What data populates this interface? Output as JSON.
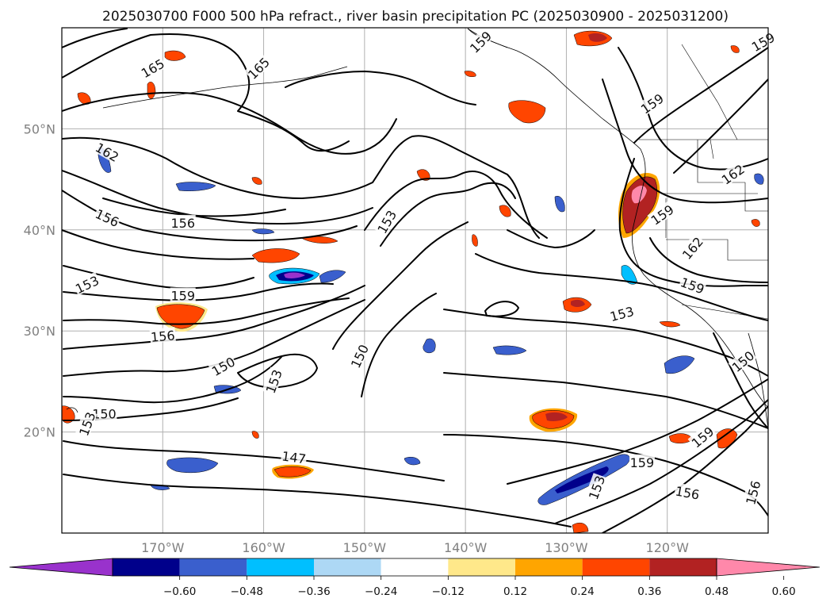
{
  "title": "2025030700 F000 500 hPa refract., river basin precipitation PC (2025030900 - 2025031200)",
  "map": {
    "lon_min": -180,
    "lon_max": -110,
    "lat_min": 10,
    "lat_max": 60,
    "lat_ticks": [
      {
        "value": 20,
        "label": "20°N"
      },
      {
        "value": 30,
        "label": "30°N"
      },
      {
        "value": 40,
        "label": "40°N"
      },
      {
        "value": 50,
        "label": "50°N"
      }
    ],
    "lon_ticks": [
      {
        "value": -170,
        "label": "170°W"
      },
      {
        "value": -160,
        "label": "160°W"
      },
      {
        "value": -150,
        "label": "150°W"
      },
      {
        "value": -140,
        "label": "140°W"
      },
      {
        "value": -130,
        "label": "130°W"
      },
      {
        "value": -120,
        "label": "120°W"
      }
    ]
  },
  "colorbar": {
    "colors": [
      "#9932cc",
      "#00008b",
      "#3a5fcd",
      "#00bfff",
      "#add8f5",
      "#ffffff",
      "#ffe88a",
      "#ffa500",
      "#ff4500",
      "#b22222",
      "#ff88aa"
    ],
    "ticks": [
      "−0.60",
      "−0.48",
      "−0.36",
      "−0.24",
      "−0.12",
      "0.12",
      "0.24",
      "0.36",
      "0.48",
      "0.60"
    ]
  },
  "contour_labels": [
    {
      "text": "165",
      "lon": -171.0,
      "lat": 56.0,
      "rot": -30
    },
    {
      "text": "165",
      "lon": -160.5,
      "lat": 56.0,
      "rot": -45
    },
    {
      "text": "162",
      "lon": -175.5,
      "lat": 47.7,
      "rot": 30
    },
    {
      "text": "156",
      "lon": -175.5,
      "lat": 41.2,
      "rot": 25
    },
    {
      "text": "156",
      "lon": -168.0,
      "lat": 40.7,
      "rot": 0
    },
    {
      "text": "153",
      "lon": -177.5,
      "lat": 34.6,
      "rot": -25
    },
    {
      "text": "159",
      "lon": -168.0,
      "lat": 33.5,
      "rot": 0
    },
    {
      "text": "156",
      "lon": -170.0,
      "lat": 29.5,
      "rot": -5
    },
    {
      "text": "150",
      "lon": -164.0,
      "lat": 26.5,
      "rot": -30
    },
    {
      "text": "153",
      "lon": -159.0,
      "lat": 25.0,
      "rot": -70
    },
    {
      "text": "150",
      "lon": -150.5,
      "lat": 27.5,
      "rot": -65
    },
    {
      "text": "150",
      "lon": -175.8,
      "lat": 21.8,
      "rot": 0
    },
    {
      "text": "153",
      "lon": -177.5,
      "lat": 20.8,
      "rot": -70
    },
    {
      "text": "147",
      "lon": -157.0,
      "lat": 17.5,
      "rot": 8
    },
    {
      "text": "153",
      "lon": -147.8,
      "lat": 40.8,
      "rot": -60
    },
    {
      "text": "159",
      "lon": -121.5,
      "lat": 52.5,
      "rot": -35
    },
    {
      "text": "162",
      "lon": -113.5,
      "lat": 45.5,
      "rot": -35
    },
    {
      "text": "159",
      "lon": -120.5,
      "lat": 41.5,
      "rot": -35
    },
    {
      "text": "162",
      "lon": -117.5,
      "lat": 38.2,
      "rot": -50
    },
    {
      "text": "159",
      "lon": -117.5,
      "lat": 34.5,
      "rot": 20
    },
    {
      "text": "153",
      "lon": -124.5,
      "lat": 31.7,
      "rot": -15
    },
    {
      "text": "150",
      "lon": -112.5,
      "lat": 27.0,
      "rot": -40
    },
    {
      "text": "159",
      "lon": -116.5,
      "lat": 19.5,
      "rot": -40
    },
    {
      "text": "159",
      "lon": -122.5,
      "lat": 17.0,
      "rot": 0
    },
    {
      "text": "153",
      "lon": -127.0,
      "lat": 14.5,
      "rot": -70
    },
    {
      "text": "156",
      "lon": -118.0,
      "lat": 14.0,
      "rot": 10
    },
    {
      "text": "156",
      "lon": -111.5,
      "lat": 14.0,
      "rot": -75
    },
    {
      "text": "159",
      "lon": -110.5,
      "lat": 58.6,
      "rot": -30
    },
    {
      "text": "159",
      "lon": -138.5,
      "lat": 58.6,
      "rot": -45
    }
  ]
}
